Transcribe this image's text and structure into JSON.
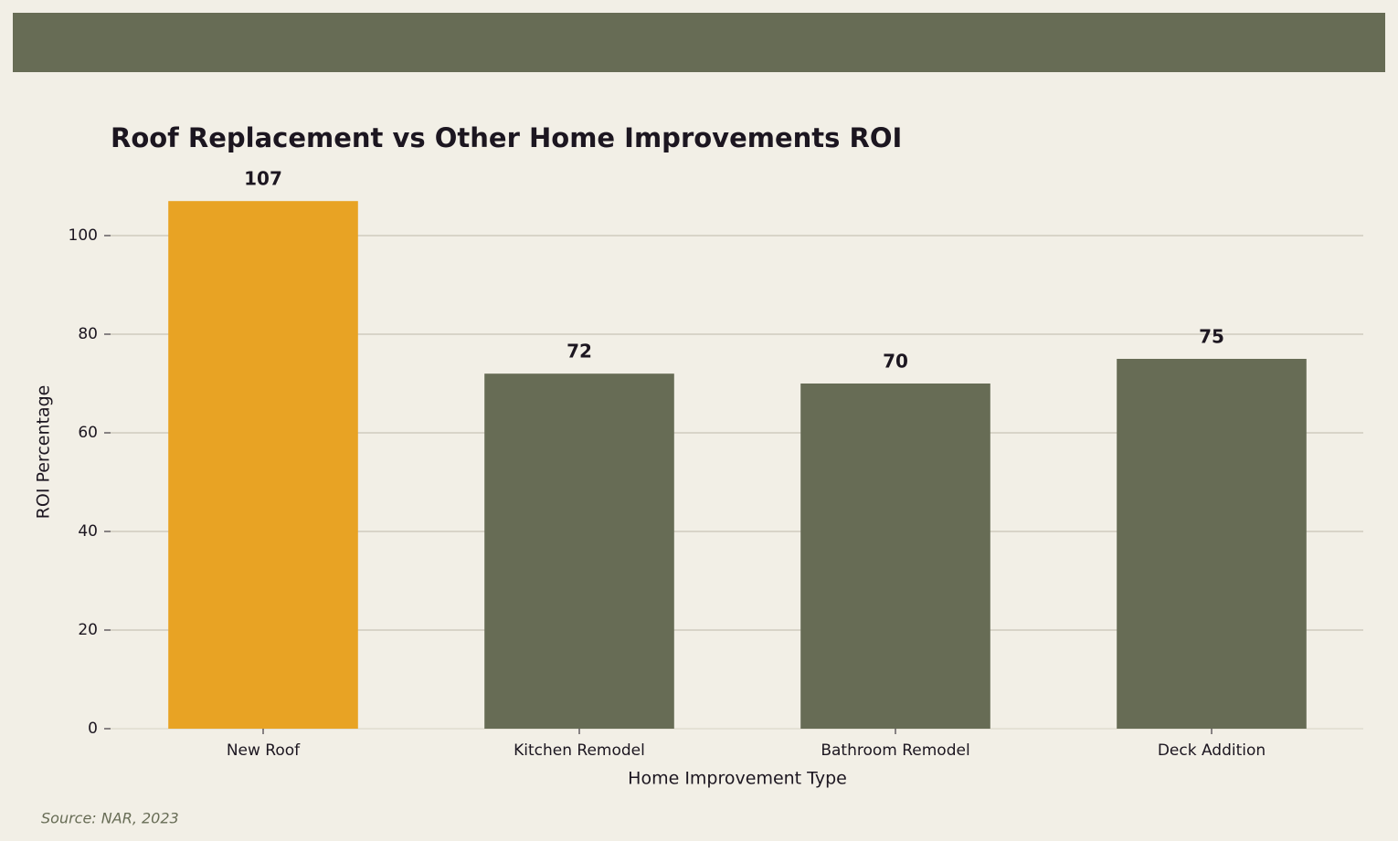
{
  "chart_data": {
    "type": "bar",
    "title": "Roof Replacement vs Other Home Improvements ROI",
    "x_label": "Home Improvement Type",
    "y_label": "ROI Percentage",
    "categories": [
      "New Roof",
      "Kitchen Remodel",
      "Bathroom Remodel",
      "Deck Addition"
    ],
    "values": [
      107,
      72,
      70,
      75
    ],
    "colors": [
      "#e8a324",
      "#676c55",
      "#676c55",
      "#676c55"
    ],
    "ylim": [
      0,
      112.35
    ],
    "yticks": [
      0,
      20,
      40,
      60,
      80,
      100
    ],
    "grid": true,
    "source": "Source: NAR, 2023"
  }
}
